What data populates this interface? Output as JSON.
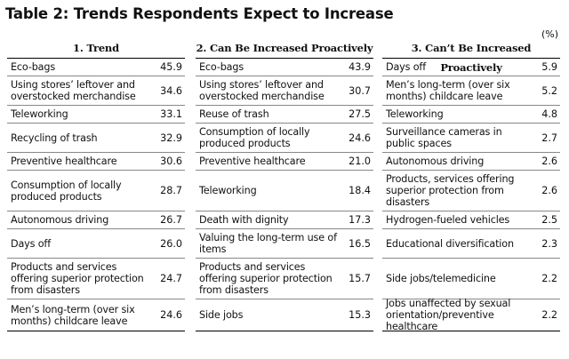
{
  "title": "Table 2: Trends Respondents Expect to Increase",
  "unit": "(%)",
  "columns": [
    {
      "header": "1. Trend",
      "rows": [
        {
          "label": "Eco-bags",
          "value": "45.9"
        },
        {
          "label": "Using stores’ leftover and overstocked merchandise",
          "value": "34.6"
        },
        {
          "label": "Teleworking",
          "value": "33.1"
        },
        {
          "label": "Recycling of trash",
          "value": "32.9"
        },
        {
          "label": "Preventive healthcare",
          "value": "30.6"
        },
        {
          "label": "Consumption of locally produced products",
          "value": "28.7"
        },
        {
          "label": "Autonomous driving",
          "value": "26.7"
        },
        {
          "label": "Days off",
          "value": "26.0"
        },
        {
          "label": "Products and services offering superior protection from disasters",
          "value": "24.7"
        },
        {
          "label": "Men’s long-term (over six months) childcare leave",
          "value": "24.6"
        }
      ]
    },
    {
      "header": "2. Can Be Increased Proactively",
      "rows": [
        {
          "label": "Eco-bags",
          "value": "43.9"
        },
        {
          "label": "Using stores’ leftover and overstocked merchandise",
          "value": "30.7"
        },
        {
          "label": "Reuse of trash",
          "value": "27.5"
        },
        {
          "label": "Consumption of locally produced products",
          "value": "24.6"
        },
        {
          "label": "Preventive healthcare",
          "value": "21.0"
        },
        {
          "label": "Teleworking",
          "value": "18.4"
        },
        {
          "label": "Death with dignity",
          "value": "17.3"
        },
        {
          "label": "Valuing the long-term use of items",
          "value": "16.5"
        },
        {
          "label": "Products and services offering superior protection from disasters",
          "value": "15.7"
        },
        {
          "label": "Side jobs",
          "value": "15.3"
        }
      ]
    },
    {
      "header": "3. Can’t Be Increased Proactively",
      "rows": [
        {
          "label": "Days off",
          "value": "5.9"
        },
        {
          "label": "Men’s long-term (over six months) childcare leave",
          "value": "5.2"
        },
        {
          "label": "Teleworking",
          "value": "4.8"
        },
        {
          "label": "Surveillance cameras in public spaces",
          "value": "2.7"
        },
        {
          "label": "Autonomous driving",
          "value": "2.6"
        },
        {
          "label": "Products, services offering superior protection from disasters",
          "value": "2.6"
        },
        {
          "label": "Hydrogen-fueled vehicles",
          "value": "2.5"
        },
        {
          "label": "Educational diversification",
          "value": "2.3"
        },
        {
          "label": "Side jobs/telemedicine",
          "value": "2.2"
        },
        {
          "label": "Jobs unaffected by sexual orientation/preventive healthcare",
          "value": "2.2"
        }
      ]
    }
  ]
}
